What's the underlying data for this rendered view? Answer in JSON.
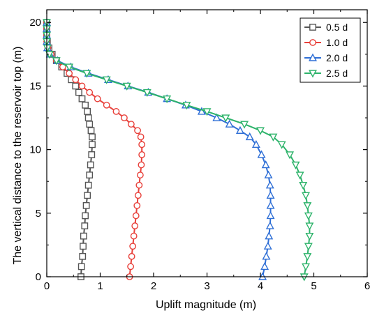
{
  "chart_data": {
    "type": "line",
    "title": "",
    "xlabel": "Uplift magnitude (m)",
    "ylabel": "The vertical distance to the reservoir top (m)",
    "xlim": [
      0,
      6
    ],
    "ylim": [
      0,
      21
    ],
    "xticks": [
      "0",
      "1",
      "2",
      "3",
      "4",
      "5",
      "6"
    ],
    "yticks": [
      "0",
      "5",
      "10",
      "15",
      "20"
    ],
    "grid": false,
    "legend_position": "top-right",
    "series": [
      {
        "name": "0.5 d",
        "color": "#555555",
        "marker": "square",
        "points": [
          [
            0.64,
            0.0
          ],
          [
            0.65,
            0.8
          ],
          [
            0.67,
            1.6
          ],
          [
            0.68,
            2.4
          ],
          [
            0.69,
            3.2
          ],
          [
            0.71,
            4.0
          ],
          [
            0.72,
            4.8
          ],
          [
            0.74,
            5.6
          ],
          [
            0.76,
            6.4
          ],
          [
            0.78,
            7.2
          ],
          [
            0.8,
            8.0
          ],
          [
            0.82,
            8.8
          ],
          [
            0.84,
            9.6
          ],
          [
            0.85,
            10.4
          ],
          [
            0.85,
            11.0
          ],
          [
            0.83,
            11.5
          ],
          [
            0.8,
            12.0
          ],
          [
            0.78,
            12.5
          ],
          [
            0.76,
            13.0
          ],
          [
            0.72,
            13.5
          ],
          [
            0.66,
            14.0
          ],
          [
            0.6,
            14.5
          ],
          [
            0.54,
            15.0
          ],
          [
            0.46,
            15.5
          ],
          [
            0.38,
            16.0
          ],
          [
            0.28,
            16.5
          ],
          [
            0.18,
            17.0
          ],
          [
            0.1,
            17.5
          ],
          [
            0.04,
            18.0
          ],
          [
            0.01,
            18.5
          ],
          [
            0.0,
            19.0
          ],
          [
            0.0,
            19.5
          ],
          [
            0.0,
            20.0
          ]
        ]
      },
      {
        "name": "1.0 d",
        "color": "#e8403a",
        "marker": "circle",
        "points": [
          [
            1.55,
            0.0
          ],
          [
            1.57,
            0.8
          ],
          [
            1.59,
            1.6
          ],
          [
            1.61,
            2.4
          ],
          [
            1.63,
            3.2
          ],
          [
            1.65,
            4.0
          ],
          [
            1.67,
            4.8
          ],
          [
            1.69,
            5.6
          ],
          [
            1.71,
            6.4
          ],
          [
            1.73,
            7.2
          ],
          [
            1.75,
            8.0
          ],
          [
            1.77,
            8.8
          ],
          [
            1.78,
            9.6
          ],
          [
            1.78,
            10.4
          ],
          [
            1.76,
            11.0
          ],
          [
            1.7,
            11.5
          ],
          [
            1.58,
            12.0
          ],
          [
            1.45,
            12.5
          ],
          [
            1.3,
            13.0
          ],
          [
            1.12,
            13.5
          ],
          [
            0.95,
            14.0
          ],
          [
            0.8,
            14.5
          ],
          [
            0.66,
            15.0
          ],
          [
            0.54,
            15.5
          ],
          [
            0.42,
            16.0
          ],
          [
            0.3,
            16.5
          ],
          [
            0.18,
            17.0
          ],
          [
            0.08,
            17.5
          ],
          [
            0.02,
            18.0
          ],
          [
            0.0,
            18.5
          ],
          [
            0.0,
            19.0
          ],
          [
            0.0,
            19.5
          ],
          [
            0.0,
            20.0
          ]
        ]
      },
      {
        "name": "2.0 d",
        "color": "#2f6fd6",
        "marker": "triangle-up",
        "points": [
          [
            4.04,
            0.0
          ],
          [
            4.08,
            0.8
          ],
          [
            4.11,
            1.6
          ],
          [
            4.14,
            2.4
          ],
          [
            4.16,
            3.2
          ],
          [
            4.18,
            4.0
          ],
          [
            4.19,
            4.8
          ],
          [
            4.19,
            5.6
          ],
          [
            4.19,
            6.4
          ],
          [
            4.18,
            7.2
          ],
          [
            4.15,
            8.0
          ],
          [
            4.1,
            8.8
          ],
          [
            4.02,
            9.6
          ],
          [
            3.92,
            10.4
          ],
          [
            3.8,
            11.0
          ],
          [
            3.62,
            11.5
          ],
          [
            3.42,
            12.0
          ],
          [
            3.18,
            12.5
          ],
          [
            2.9,
            13.0
          ],
          [
            2.6,
            13.5
          ],
          [
            2.25,
            14.0
          ],
          [
            1.9,
            14.5
          ],
          [
            1.52,
            15.0
          ],
          [
            1.15,
            15.5
          ],
          [
            0.78,
            16.0
          ],
          [
            0.45,
            16.5
          ],
          [
            0.2,
            17.0
          ],
          [
            0.06,
            17.5
          ],
          [
            0.01,
            18.0
          ],
          [
            0.0,
            18.5
          ],
          [
            0.0,
            19.0
          ],
          [
            0.0,
            19.5
          ],
          [
            0.0,
            20.0
          ]
        ]
      },
      {
        "name": "2.5 d",
        "color": "#2db36a",
        "marker": "triangle-down",
        "points": [
          [
            4.82,
            0.0
          ],
          [
            4.85,
            0.8
          ],
          [
            4.88,
            1.6
          ],
          [
            4.9,
            2.4
          ],
          [
            4.92,
            3.2
          ],
          [
            4.92,
            4.0
          ],
          [
            4.9,
            4.8
          ],
          [
            4.88,
            5.6
          ],
          [
            4.85,
            6.4
          ],
          [
            4.8,
            7.2
          ],
          [
            4.74,
            8.0
          ],
          [
            4.66,
            8.8
          ],
          [
            4.55,
            9.6
          ],
          [
            4.4,
            10.4
          ],
          [
            4.24,
            11.0
          ],
          [
            4.0,
            11.5
          ],
          [
            3.7,
            12.0
          ],
          [
            3.35,
            12.5
          ],
          [
            3.0,
            13.0
          ],
          [
            2.62,
            13.5
          ],
          [
            2.25,
            14.0
          ],
          [
            1.88,
            14.5
          ],
          [
            1.5,
            15.0
          ],
          [
            1.12,
            15.5
          ],
          [
            0.75,
            16.0
          ],
          [
            0.42,
            16.5
          ],
          [
            0.18,
            17.0
          ],
          [
            0.05,
            17.5
          ],
          [
            0.01,
            18.0
          ],
          [
            0.0,
            18.5
          ],
          [
            0.0,
            19.0
          ],
          [
            0.0,
            19.5
          ],
          [
            0.0,
            20.0
          ]
        ]
      }
    ]
  }
}
